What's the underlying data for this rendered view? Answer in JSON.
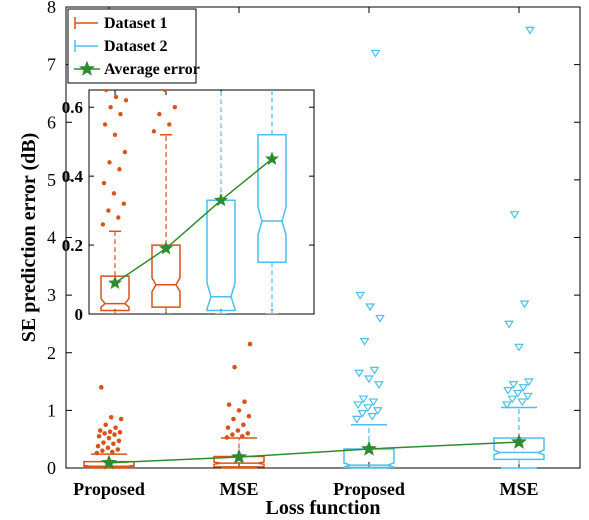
{
  "chart_data": {
    "type": "box",
    "xlabel": "Loss function",
    "ylabel": "SE prediction error (dB)",
    "ylim": [
      0,
      8
    ],
    "yticks": [
      0,
      1,
      2,
      3,
      4,
      5,
      6,
      7,
      8
    ],
    "categories": [
      "Proposed",
      "MSE",
      "Proposed",
      "MSE"
    ],
    "legend": {
      "placement": "top-left",
      "entries": [
        {
          "label": "Dataset 1",
          "color": "#D95319",
          "marker": "box"
        },
        {
          "label": "Dataset 2",
          "color": "#4DBEEE",
          "marker": "box"
        },
        {
          "label": "Average error",
          "color": "#2E8B2E",
          "marker": "star-line"
        }
      ]
    },
    "series": [
      {
        "name": "Dataset 1",
        "color": "#D95319",
        "outlier_marker": "dot",
        "boxes": [
          {
            "category": "Proposed",
            "q1": 0.01,
            "median": 0.03,
            "q3": 0.11,
            "notch_low": 0.02,
            "notch_high": 0.045,
            "whisker_low": 0.0,
            "whisker_high": 0.24,
            "outliers": [
              0.26,
              0.28,
              0.3,
              0.32,
              0.35,
              0.38,
              0.42,
              0.44,
              0.47,
              0.52,
              0.55,
              0.58,
              0.6,
              0.62,
              0.63,
              0.65,
              0.7,
              0.75,
              0.85,
              0.88,
              1.4
            ]
          },
          {
            "category": "MSE",
            "q1": 0.02,
            "median": 0.085,
            "q3": 0.2,
            "notch_low": 0.065,
            "notch_high": 0.105,
            "whisker_low": 0.0,
            "whisker_high": 0.52,
            "outliers": [
              0.53,
              0.55,
              0.58,
              0.6,
              0.65,
              0.7,
              0.75,
              0.85,
              0.9,
              1.0,
              1.1,
              1.15,
              1.75,
              2.15
            ]
          }
        ]
      },
      {
        "name": "Dataset 2",
        "color": "#4DBEEE",
        "outlier_marker": "triangle-down",
        "boxes": [
          {
            "category": "Proposed",
            "q1": 0.01,
            "median": 0.05,
            "q3": 0.33,
            "notch_low": 0.015,
            "notch_high": 0.09,
            "whisker_low": 0.0,
            "whisker_high": 0.75,
            "outliers": [
              0.85,
              0.9,
              0.95,
              1.0,
              1.05,
              1.1,
              1.15,
              1.2,
              1.45,
              1.55,
              1.65,
              1.7,
              2.2,
              2.6,
              2.8,
              3.0,
              7.2
            ]
          },
          {
            "category": "MSE",
            "q1": 0.15,
            "median": 0.27,
            "q3": 0.52,
            "notch_low": 0.23,
            "notch_high": 0.31,
            "whisker_low": 0.0,
            "whisker_high": 1.05,
            "outliers": [
              1.1,
              1.15,
              1.2,
              1.25,
              1.3,
              1.35,
              1.4,
              1.45,
              1.5,
              2.1,
              2.5,
              2.85,
              4.4,
              7.6
            ]
          }
        ]
      },
      {
        "name": "Average error",
        "color": "#2E8B2E",
        "type": "line",
        "marker": "star",
        "values": [
          0.09,
          0.19,
          0.33,
          0.45
        ]
      }
    ],
    "inset": {
      "ylim": [
        0,
        0.65
      ],
      "yticks": [
        0,
        0.2,
        0.4,
        0.6
      ],
      "ytick_labels": [
        "0",
        "0.2",
        "0.4",
        "0.6"
      ],
      "zoom_of": "main"
    }
  }
}
